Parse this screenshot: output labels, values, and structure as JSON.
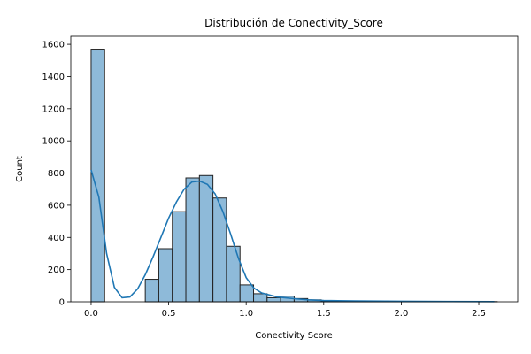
{
  "chart_data": {
    "type": "bar",
    "title": "Distribución de Conectivity_Score",
    "xlabel": "Conectivity Score",
    "ylabel": "Count",
    "xlim": [
      -0.131,
      2.751
    ],
    "ylim": [
      0,
      1650
    ],
    "xticks": [
      0.0,
      0.5,
      1.0,
      1.5,
      2.0,
      2.5
    ],
    "xtick_labels": [
      "0.0",
      "0.5",
      "1.0",
      "1.5",
      "2.0",
      "2.5"
    ],
    "yticks": [
      0,
      200,
      400,
      600,
      800,
      1000,
      1200,
      1400,
      1600
    ],
    "ytick_labels": [
      "0",
      "200",
      "400",
      "600",
      "800",
      "1000",
      "1200",
      "1400",
      "1600"
    ],
    "grid": false,
    "bin_width": 0.0873,
    "bin_start": 0.0,
    "counts": [
      1570,
      0,
      0,
      0,
      140,
      330,
      560,
      770,
      785,
      645,
      345,
      105,
      50,
      25,
      35,
      20,
      12,
      6,
      4,
      2,
      2,
      1,
      1,
      1,
      1,
      1,
      1,
      1,
      1,
      1
    ],
    "bar_color": "#8ebad9",
    "edge_color": "#222222",
    "kde": {
      "color": "#1f77b4",
      "x": [
        0.0,
        0.05,
        0.1,
        0.15,
        0.2,
        0.25,
        0.3,
        0.35,
        0.4,
        0.45,
        0.5,
        0.55,
        0.6,
        0.65,
        0.7,
        0.75,
        0.8,
        0.85,
        0.9,
        0.95,
        1.0,
        1.05,
        1.1,
        1.2,
        1.3,
        1.4,
        1.5,
        1.7,
        2.0,
        2.3,
        2.6
      ],
      "y": [
        820,
        650,
        300,
        90,
        25,
        30,
        80,
        170,
        280,
        400,
        520,
        620,
        700,
        745,
        750,
        730,
        670,
        560,
        420,
        270,
        150,
        85,
        55,
        30,
        20,
        12,
        8,
        5,
        3,
        2,
        1
      ]
    }
  }
}
